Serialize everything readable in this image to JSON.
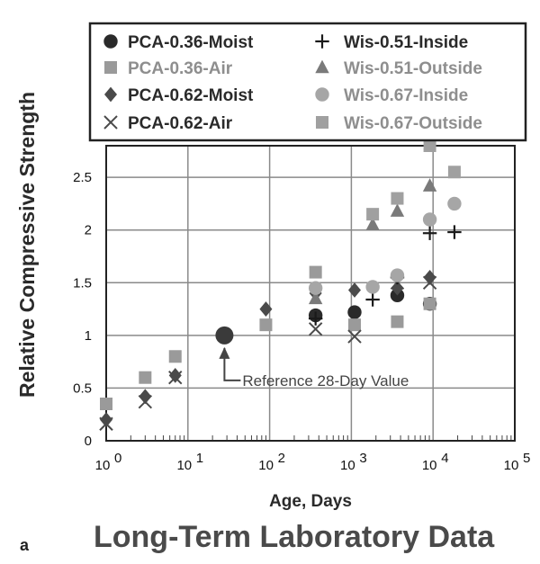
{
  "chart_data": {
    "type": "scatter",
    "xscale": "log",
    "xlim": [
      1,
      100000
    ],
    "ylim": [
      0,
      2.8
    ],
    "xlabel": "Age, Days",
    "ylabel": "Relative Compressive Strength",
    "xticks": [
      1,
      10,
      100,
      1000,
      10000,
      100000
    ],
    "xtick_labels": [
      {
        "base": "10",
        "exp": "0"
      },
      {
        "base": "10",
        "exp": "1"
      },
      {
        "base": "10",
        "exp": "2"
      },
      {
        "base": "10",
        "exp": "3"
      },
      {
        "base": "10",
        "exp": "4"
      },
      {
        "base": "10",
        "exp": "5"
      }
    ],
    "yticks": [
      0,
      0.5,
      1,
      1.5,
      2,
      2.5
    ],
    "ytick_labels": [
      "0",
      "0.5",
      "1",
      "1.5",
      "2",
      "2.5"
    ],
    "grid": true,
    "legend_position": "top",
    "series": [
      {
        "name": "PCA-0.36-Moist",
        "marker": "circle",
        "color": "#2a2a2a",
        "x": [
          365,
          1095,
          3650,
          9125
        ],
        "y": [
          1.19,
          1.22,
          1.38,
          1.3
        ]
      },
      {
        "name": "PCA-0.36-Air",
        "marker": "square",
        "color": "#9a9a9a",
        "x": [
          1,
          3,
          7,
          90,
          365,
          1095,
          3650,
          9125
        ],
        "y": [
          0.35,
          0.6,
          0.8,
          1.1,
          1.6,
          1.1,
          1.13,
          1.3
        ]
      },
      {
        "name": "PCA-0.62-Moist",
        "marker": "diamond",
        "color": "#4a4a4a",
        "x": [
          1,
          3,
          7,
          90,
          365,
          1095,
          3650,
          9125
        ],
        "y": [
          0.2,
          0.42,
          0.62,
          1.25,
          1.4,
          1.43,
          1.45,
          1.55
        ]
      },
      {
        "name": "PCA-0.62-Air",
        "marker": "x",
        "color": "#4a4a4a",
        "x": [
          1,
          3,
          7,
          365,
          1095,
          3650,
          9125
        ],
        "y": [
          0.16,
          0.37,
          0.6,
          1.06,
          0.99,
          1.5,
          1.5
        ]
      },
      {
        "name": "Wis-0.51-Inside",
        "marker": "plus",
        "color": "#1a1a1a",
        "x": [
          365,
          1825,
          3650,
          9125,
          18250
        ],
        "y": [
          1.16,
          1.34,
          1.55,
          1.97,
          1.98
        ]
      },
      {
        "name": "Wis-0.51-Outside",
        "marker": "triangle",
        "color": "#7a7a7a",
        "x": [
          365,
          1825,
          3650,
          9125
        ],
        "y": [
          1.35,
          2.05,
          2.18,
          2.42
        ]
      },
      {
        "name": "Wis-0.67-Inside",
        "marker": "circle",
        "color": "#a6a6a6",
        "x": [
          365,
          1825,
          3650,
          9125,
          18250
        ],
        "y": [
          1.45,
          1.46,
          1.57,
          2.1,
          2.25
        ]
      },
      {
        "name": "Wis-0.67-Outside",
        "marker": "square",
        "color": "#a0a0a0",
        "x": [
          1825,
          3650,
          9125,
          18250
        ],
        "y": [
          2.15,
          2.3,
          2.8,
          2.55
        ]
      }
    ],
    "reference_point": {
      "x": 28,
      "y": 1.0
    },
    "annotations": [
      {
        "text": "Reference 28-Day Value",
        "x": 28,
        "y": 1.0
      }
    ]
  },
  "panel_letter": "a",
  "caption_title": "Long-Term Laboratory Data"
}
